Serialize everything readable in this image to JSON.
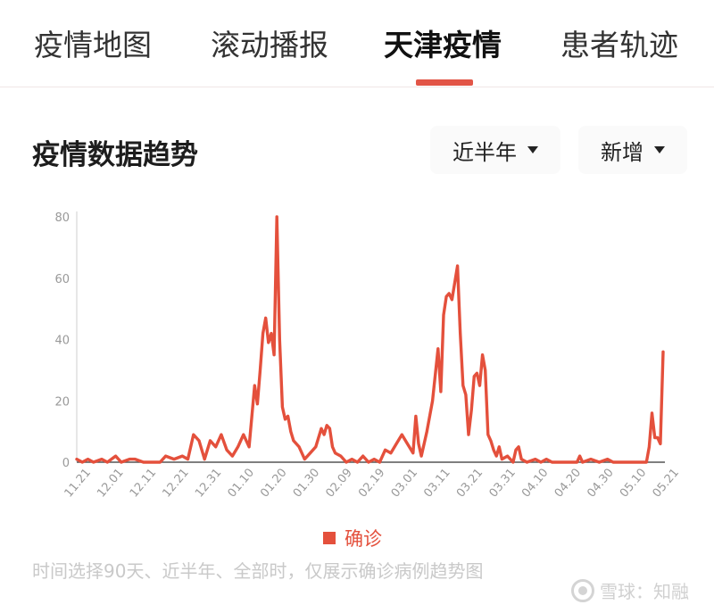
{
  "tabs": [
    {
      "label": "疫情地图",
      "active": false
    },
    {
      "label": "滚动播报",
      "active": false
    },
    {
      "label": "天津疫情",
      "active": true
    },
    {
      "label": "患者轨迹",
      "active": false
    }
  ],
  "section": {
    "title": "疫情数据趋势",
    "range_dropdown": "近半年",
    "metric_dropdown": "新增"
  },
  "legend": {
    "label": "确诊"
  },
  "footnote": "时间选择90天、近半年、全部时，仅展示确诊病例趋势图",
  "watermark": {
    "text": "雪球：知融"
  },
  "colors": {
    "accent": "#e25547",
    "series": "#e4503c",
    "axis": "#999999"
  },
  "chart_data": {
    "type": "line",
    "title": "",
    "xlabel": "",
    "ylabel": "",
    "ylim": [
      0,
      80
    ],
    "yticks": [
      0,
      20,
      40,
      60,
      80
    ],
    "xticks": [
      "11.21",
      "12.01",
      "12.11",
      "12.21",
      "12.31",
      "01.10",
      "01.20",
      "01.30",
      "02.09",
      "02.19",
      "03.01",
      "03.11",
      "03.21",
      "03.31",
      "04.10",
      "04.20",
      "04.30",
      "05.10",
      "05.21"
    ],
    "series": [
      {
        "name": "确诊",
        "points": [
          [
            0,
            1
          ],
          [
            2,
            0
          ],
          [
            4,
            1
          ],
          [
            6,
            0
          ],
          [
            9,
            1
          ],
          [
            11,
            0
          ],
          [
            14,
            2
          ],
          [
            16,
            0
          ],
          [
            19,
            1
          ],
          [
            21,
            1
          ],
          [
            24,
            0
          ],
          [
            30,
            0
          ],
          [
            32,
            2
          ],
          [
            35,
            1
          ],
          [
            38,
            2
          ],
          [
            40,
            1
          ],
          [
            42,
            9
          ],
          [
            44,
            7
          ],
          [
            46,
            1
          ],
          [
            48,
            7
          ],
          [
            50,
            5
          ],
          [
            52,
            9
          ],
          [
            54,
            4
          ],
          [
            56,
            2
          ],
          [
            58,
            5
          ],
          [
            60,
            9
          ],
          [
            62,
            5
          ],
          [
            64,
            25
          ],
          [
            65,
            19
          ],
          [
            66,
            30
          ],
          [
            67,
            42
          ],
          [
            68,
            47
          ],
          [
            69,
            39
          ],
          [
            70,
            42
          ],
          [
            71,
            35
          ],
          [
            72,
            80
          ],
          [
            73,
            40
          ],
          [
            74,
            18
          ],
          [
            75,
            14
          ],
          [
            76,
            15
          ],
          [
            77,
            10
          ],
          [
            78,
            7
          ],
          [
            80,
            5
          ],
          [
            82,
            1
          ],
          [
            84,
            3
          ],
          [
            86,
            5
          ],
          [
            88,
            11
          ],
          [
            89,
            9
          ],
          [
            90,
            12
          ],
          [
            91,
            11
          ],
          [
            92,
            5
          ],
          [
            93,
            3
          ],
          [
            95,
            2
          ],
          [
            97,
            0
          ],
          [
            99,
            1
          ],
          [
            101,
            0
          ],
          [
            103,
            2
          ],
          [
            105,
            0
          ],
          [
            107,
            1
          ],
          [
            109,
            0
          ],
          [
            111,
            4
          ],
          [
            113,
            3
          ],
          [
            115,
            6
          ],
          [
            117,
            9
          ],
          [
            119,
            6
          ],
          [
            121,
            3
          ],
          [
            122,
            15
          ],
          [
            123,
            6
          ],
          [
            124,
            2
          ],
          [
            126,
            10
          ],
          [
            128,
            20
          ],
          [
            130,
            37
          ],
          [
            131,
            23
          ],
          [
            132,
            48
          ],
          [
            133,
            54
          ],
          [
            134,
            55
          ],
          [
            135,
            53
          ],
          [
            137,
            64
          ],
          [
            138,
            42
          ],
          [
            139,
            25
          ],
          [
            140,
            22
          ],
          [
            141,
            9
          ],
          [
            142,
            17
          ],
          [
            143,
            28
          ],
          [
            144,
            29
          ],
          [
            145,
            25
          ],
          [
            146,
            35
          ],
          [
            147,
            30
          ],
          [
            148,
            9
          ],
          [
            149,
            7
          ],
          [
            150,
            4
          ],
          [
            151,
            2
          ],
          [
            152,
            5
          ],
          [
            153,
            1
          ],
          [
            155,
            2
          ],
          [
            157,
            0
          ],
          [
            158,
            4
          ],
          [
            159,
            5
          ],
          [
            160,
            1
          ],
          [
            162,
            0
          ],
          [
            165,
            1
          ],
          [
            167,
            0
          ],
          [
            169,
            1
          ],
          [
            171,
            0
          ],
          [
            180,
            0
          ],
          [
            181,
            2
          ],
          [
            182,
            0
          ],
          [
            185,
            1
          ],
          [
            188,
            0
          ],
          [
            191,
            1
          ],
          [
            193,
            0
          ],
          [
            205,
            0
          ],
          [
            206,
            5
          ],
          [
            207,
            16
          ],
          [
            208,
            8
          ],
          [
            209,
            8
          ],
          [
            210,
            6
          ],
          [
            211,
            36
          ]
        ]
      }
    ]
  }
}
